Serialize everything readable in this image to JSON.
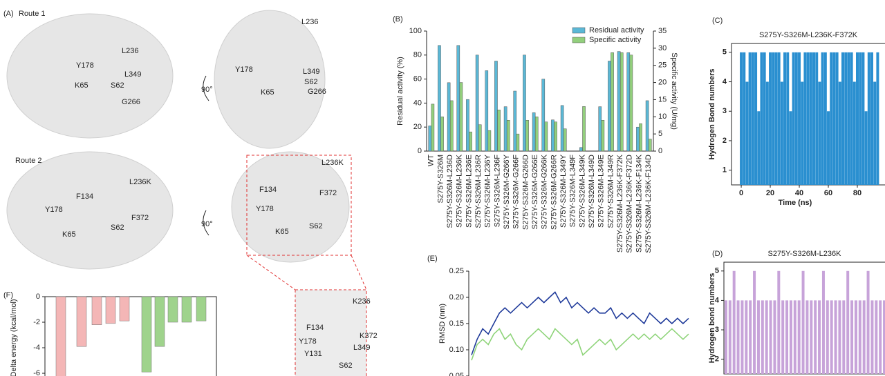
{
  "panels": {
    "a": "(A)",
    "b": "(B)",
    "c": "(C)",
    "d": "(D)",
    "e": "(E)",
    "f": "(F)"
  },
  "structures": {
    "route1": "Route 1",
    "route2": "Route 2",
    "rotation": "90°",
    "labels": [
      "L236",
      "Y178",
      "L349",
      "K65",
      "S62",
      "G266",
      "L236",
      "Y178",
      "L349",
      "S62",
      "K65",
      "G266",
      "L236K",
      "F134",
      "Y178",
      "F372",
      "S62",
      "K65",
      "L236K",
      "F134",
      "F372",
      "Y178",
      "S62",
      "K65",
      "K236",
      "F134",
      "K372",
      "Y178",
      "L349",
      "Y131",
      "S62"
    ]
  },
  "chart_data": [
    {
      "type": "bar",
      "categories": [
        "WT",
        "S275Y-S326M",
        "S275Y-S326M-L236D",
        "S275Y-S326M-L236K",
        "S275Y-S326M-L236E",
        "S275Y-S326M-L236R",
        "S275Y-S326M-L236Y",
        "S275Y-S326M-L236F",
        "S275Y-S326M-G266Y",
        "S275Y-S326M-G266F",
        "S275Y-S326M-G266D",
        "S275Y-S326M-G266E",
        "S275Y-S326M-G266K",
        "S275Y-S326M-G266R",
        "S275Y-S326M-L349Y",
        "S275Y-S326M-L349F",
        "S275Y-S326M-L349K",
        "S275Y-S326M-L349D",
        "S275Y-S326M-L349E",
        "S275Y-S326M-L349R",
        "S275Y-S326M-L236K-F372K",
        "S275Y-S326M-L236K-F372D",
        "S275Y-S326M-L236K-F134K",
        "S275Y-S326M-L236K-F134D"
      ],
      "series": [
        {
          "name": "Residual activity",
          "color": "#5bb8d6",
          "values": [
            21,
            88,
            57,
            88,
            43,
            80,
            67,
            75,
            37,
            50,
            80,
            32,
            60,
            26,
            38,
            0,
            3,
            0,
            37,
            75,
            83,
            82,
            20,
            42
          ]
        },
        {
          "name": "Specific activity",
          "color": "#92cf7c",
          "axis": "y2",
          "values": [
            13.7,
            10,
            14.7,
            20,
            5.6,
            7.7,
            6,
            12,
            9,
            5,
            9,
            10,
            8.5,
            8.5,
            6.5,
            0,
            13,
            0,
            9,
            28.7,
            28.7,
            28,
            8,
            3.5
          ]
        }
      ],
      "ylabel": "Residual activity (%)",
      "y2label": "Specific activity (U/mg)",
      "ylim": [
        0,
        100
      ],
      "yticks": [
        0,
        20,
        40,
        60,
        80,
        100
      ],
      "y2lim": [
        0,
        35
      ],
      "y2ticks": [
        0,
        5,
        10,
        15,
        20,
        25,
        30,
        35
      ],
      "legend": "upper right"
    },
    {
      "type": "barcode",
      "title": "S275Y-S326M-L236K-F372K",
      "xlabel": "Time (ns)",
      "ylabel": "Hydrogen Bond numbers",
      "color": "#2a8fd0",
      "x": [
        0,
        2,
        4,
        6,
        8,
        10,
        12,
        14,
        16,
        18,
        20,
        22,
        24,
        26,
        28,
        30,
        32,
        34,
        36,
        38,
        40,
        42,
        44,
        46,
        48,
        50,
        52,
        54,
        56,
        58,
        60,
        62,
        64,
        66,
        68,
        70,
        72,
        74,
        76,
        78,
        80,
        82,
        84,
        86,
        88,
        90,
        92,
        94
      ],
      "values": [
        5,
        5,
        4,
        5,
        5,
        5,
        3,
        5,
        5,
        4,
        5,
        5,
        5,
        5,
        4,
        5,
        5,
        3,
        5,
        5,
        5,
        4,
        5,
        5,
        5,
        5,
        5,
        4,
        5,
        5,
        3,
        5,
        5,
        5,
        4,
        5,
        5,
        5,
        5,
        4,
        5,
        5,
        5,
        3,
        5,
        5,
        4,
        5
      ],
      "xlim": [
        -6.7,
        100
      ],
      "xticks": [
        0,
        20,
        40,
        60,
        80
      ],
      "ylim": [
        0.5,
        5.3
      ],
      "yticks": [
        1,
        2,
        3,
        4,
        5
      ]
    },
    {
      "type": "barcode",
      "title": "S275Y-S326M-L236K",
      "ylabel": "Hydrogen bond numbers",
      "color": "#c7a3d9",
      "values": [
        4,
        4,
        5,
        4,
        4,
        4,
        4,
        5,
        4,
        4,
        4,
        4,
        4,
        5,
        4,
        4,
        4,
        4,
        4,
        5,
        4,
        4,
        4,
        4,
        5,
        4,
        4,
        4,
        4,
        4,
        5,
        4,
        4,
        4,
        4,
        5,
        4,
        4,
        4,
        4
      ],
      "ylim": [
        1.5,
        5.3
      ],
      "yticks": [
        2,
        3,
        4,
        5
      ]
    },
    {
      "type": "line",
      "ylabel": "RMSD (nm)",
      "series": [
        {
          "color": "#1f3a9a",
          "values": [
            0.09,
            0.12,
            0.14,
            0.13,
            0.15,
            0.17,
            0.18,
            0.17,
            0.18,
            0.19,
            0.18,
            0.19,
            0.2,
            0.19,
            0.2,
            0.21,
            0.19,
            0.2,
            0.18,
            0.19,
            0.18,
            0.17,
            0.18,
            0.17,
            0.17,
            0.18,
            0.16,
            0.17,
            0.16,
            0.17,
            0.16,
            0.15,
            0.17,
            0.16,
            0.15,
            0.16,
            0.15,
            0.16,
            0.15,
            0.16
          ]
        },
        {
          "color": "#8fd47a",
          "values": [
            0.08,
            0.11,
            0.12,
            0.11,
            0.13,
            0.14,
            0.12,
            0.13,
            0.11,
            0.1,
            0.12,
            0.13,
            0.14,
            0.13,
            0.12,
            0.14,
            0.13,
            0.12,
            0.11,
            0.12,
            0.09,
            0.1,
            0.11,
            0.12,
            0.11,
            0.12,
            0.1,
            0.11,
            0.12,
            0.13,
            0.12,
            0.13,
            0.12,
            0.13,
            0.12,
            0.13,
            0.14,
            0.13,
            0.12,
            0.13
          ]
        }
      ],
      "ylim": [
        0.05,
        0.25
      ],
      "yticks": [
        {
          "value": 0.05,
          "label": "0.05"
        },
        {
          "value": 0.1,
          "label": "0.10"
        },
        0.15,
        {
          "value": 0.2,
          "label": "0.20"
        },
        0.25
      ]
    },
    {
      "type": "bar",
      "ylabel": "Delta energy (kcal/mol)",
      "values": [
        -7,
        -3.9,
        -2.2,
        -2.1,
        -1.9,
        -5.9,
        -3.9,
        -2,
        -2,
        -1.9
      ],
      "colors": [
        "#f4b6b6",
        "#f4b6b6",
        "#f4b6b6",
        "#f4b6b6",
        "#f4b6b6",
        "#9fd38c",
        "#9fd38c",
        "#9fd38c",
        "#9fd38c",
        "#9fd38c"
      ],
      "ylim": [
        -6.3,
        0
      ],
      "yticks": [
        0,
        -2,
        -4,
        -6
      ]
    }
  ]
}
